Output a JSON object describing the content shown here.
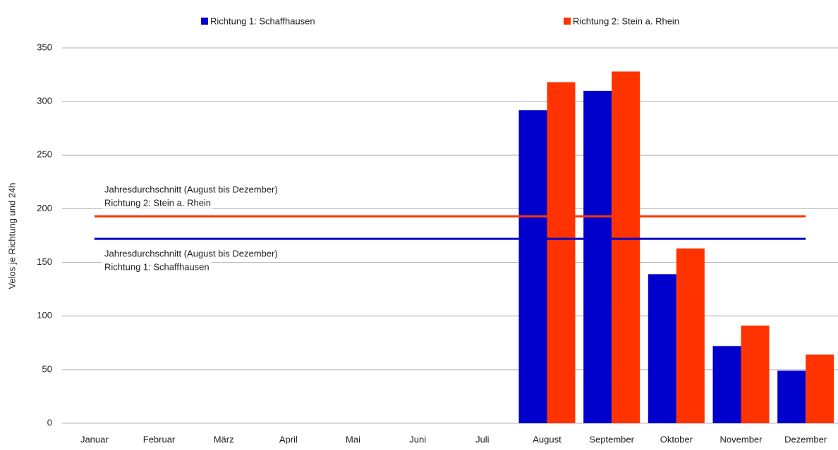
{
  "chart_data": {
    "type": "bar",
    "y_label": "Velos je Richtung und 24h",
    "categories": [
      "Januar",
      "Februar",
      "März",
      "April",
      "Mai",
      "Juni",
      "Juli",
      "August",
      "September",
      "Oktober",
      "November",
      "Dezember"
    ],
    "series": [
      {
        "name": "Richtung 1: Schaffhausen",
        "color": "#0000cc",
        "values": [
          null,
          null,
          null,
          null,
          null,
          null,
          null,
          292,
          310,
          139,
          72,
          49
        ]
      },
      {
        "name": "Richtung 2: Stein a. Rhein",
        "color": "#ff3300",
        "values": [
          null,
          null,
          null,
          null,
          null,
          null,
          null,
          318,
          328,
          163,
          91,
          64
        ]
      }
    ],
    "reference_lines": [
      {
        "value": 193,
        "color": "#ff3300",
        "label": [
          "Jahresdurchschnitt (August bis Dezember)",
          "Richtung 2: Stein a. Rhein"
        ]
      },
      {
        "value": 172,
        "color": "#0000cc",
        "label": [
          "Jahresdurchschnitt (August bis Dezember)",
          "Richtung 1: Schaffhausen"
        ]
      }
    ],
    "ylim": [
      0,
      350
    ],
    "yticks": [
      0,
      50,
      100,
      150,
      200,
      250,
      300,
      350
    ],
    "grid": true
  }
}
